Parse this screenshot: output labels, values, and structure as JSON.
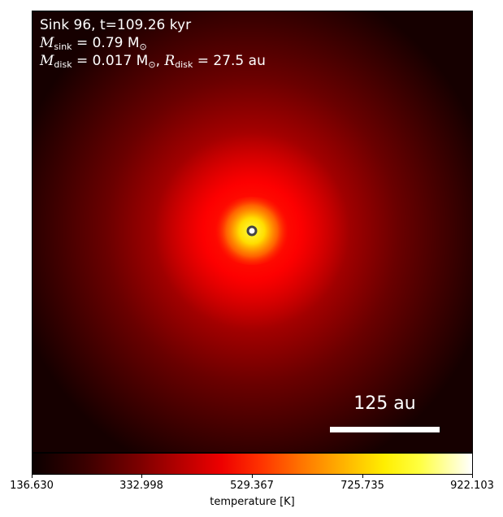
{
  "annotation": {
    "line1": "Sink 96, t=109.26 kyr",
    "mass_sink_symbol": "M",
    "mass_sink_sub": "sink",
    "mass_sink_value": " = 0.79 M",
    "mass_sink_unit_sub": "⊙",
    "mass_disk_symbol": "M",
    "mass_disk_sub": "disk",
    "mass_disk_value": " = 0.017 M",
    "mass_disk_unit_sub": "⊙",
    "radius_sep": ", ",
    "radius_disk_symbol": "R",
    "radius_disk_sub": "disk",
    "radius_disk_value": " = 27.5 au"
  },
  "scale_bar": {
    "label": "125 au"
  },
  "colorbar": {
    "label": "temperature [K]",
    "ticks": [
      "136.630",
      "332.998",
      "529.367",
      "725.735",
      "922.103"
    ],
    "colormap": "hot"
  },
  "colors": {
    "core": "#ffee00",
    "mid": "#ff0000",
    "outer": "#5a0000",
    "background": "#1a0000",
    "sink_marker_edge": "#444444"
  }
}
